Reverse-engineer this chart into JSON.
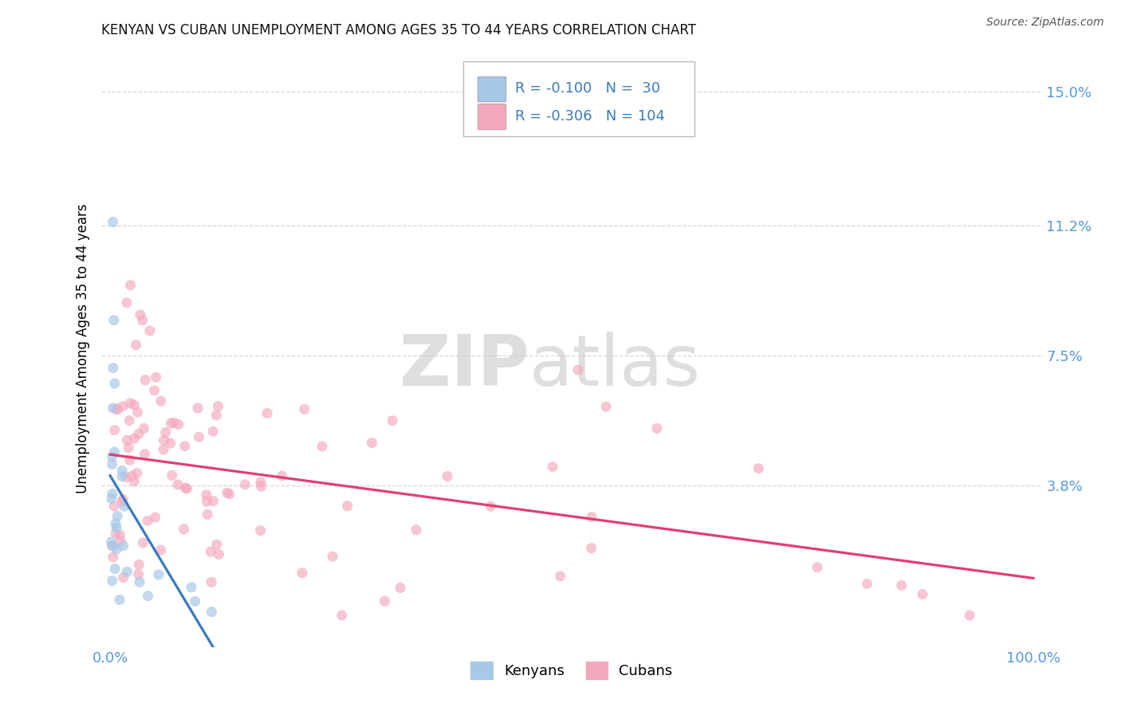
{
  "title": "KENYAN VS CUBAN UNEMPLOYMENT AMONG AGES 35 TO 44 YEARS CORRELATION CHART",
  "source": "Source: ZipAtlas.com",
  "ylabel": "Unemployment Among Ages 35 to 44 years",
  "xlim": [
    -0.01,
    1.01
  ],
  "ylim": [
    -0.008,
    0.162
  ],
  "xtick_positions": [
    0.0,
    1.0
  ],
  "xticklabels": [
    "0.0%",
    "100.0%"
  ],
  "ytick_positions": [
    0.038,
    0.075,
    0.112,
    0.15
  ],
  "yticklabels": [
    "3.8%",
    "7.5%",
    "11.2%",
    "15.0%"
  ],
  "legend_r1": "-0.100",
  "legend_n1": "30",
  "legend_r2": "-0.306",
  "legend_n2": "104",
  "kenyan_color": "#a8c8e8",
  "cuban_color": "#f4a8bc",
  "kenyan_line_color": "#3a7abf",
  "cuban_line_color": "#e04070",
  "dashed_line_color": "#a0c0dc",
  "watermark_color": "#dedede",
  "marker_size": 90,
  "axis_tick_color": "#5599dd",
  "legend_text_color": "#3a7abf",
  "title_color": "#111111",
  "bg_color": "#ffffff",
  "grid_color": "#cccccc"
}
